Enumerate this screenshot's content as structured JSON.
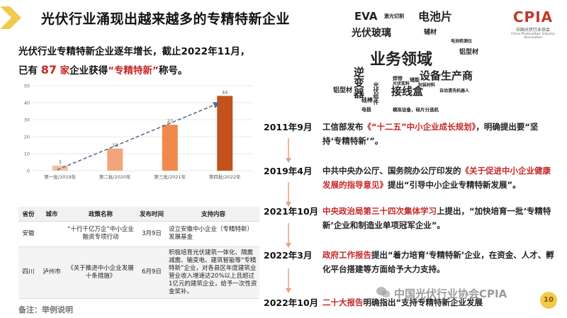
{
  "title": "光伏行业涌现出越来越多的专精特新企业",
  "intro": {
    "line1": "光伏行业专精特新企业逐年增长，截止2022年11月，",
    "line2_prefix": "已有 ",
    "count": "87",
    "line2_unit": " 家",
    "line2_mid": "企业获得",
    "highlight": "“专精特新”",
    "line2_suffix": "称号。"
  },
  "chart_data": {
    "type": "bar",
    "categories": [
      "第一批/2019年",
      "第二批/2020年",
      "第三批/2021年",
      "第四批/2022年"
    ],
    "values": [
      3,
      13,
      27,
      44
    ],
    "data_labels": [
      "3",
      "13",
      "27",
      "44"
    ],
    "bar_colors": [
      "#f2c1a2",
      "#f2a578",
      "#ef8a4a",
      "#c4521c"
    ],
    "yticks": [
      "0",
      "10",
      "20",
      "30",
      "40",
      "50"
    ],
    "ylim": [
      0,
      50
    ],
    "grid": true,
    "trendline": "dashed"
  },
  "table": {
    "headers": [
      "省份",
      "城市",
      "政策名称",
      "发布时间",
      "支持内容"
    ],
    "rows": [
      [
        "安徽",
        "",
        "“十行千亿万企”中小企业融资专项行动",
        "3月9日",
        "设立安徽中小企业（专精特新）发展基金"
      ],
      [
        "四川",
        "泸州市",
        "《关于推进中小企业发展十条措施》",
        "6月9日",
        "积极培育光伏建筑一体化、隔震减震、输变电、建筑智能等“专精特新”企业，对各县区年度建筑业营业收入增速达20%以上且超过1亿元的建筑企业，给予一次性资金奖补。"
      ]
    ]
  },
  "footnote": "备注：举例说明",
  "word_cloud": [
    {
      "text": "EVA",
      "color": "#333333"
    },
    {
      "text": "激光切割",
      "color": "#c62828"
    },
    {
      "text": "电池片",
      "color": "#333333"
    },
    {
      "text": "光伏玻璃",
      "color": "#333333"
    },
    {
      "text": "辅材",
      "color": "#2e7d32"
    },
    {
      "text": "电池检测仪",
      "color": "#c62828"
    },
    {
      "text": "铝型材",
      "color": "#2e7d32"
    },
    {
      "text": "业务领域",
      "color": "#c62828"
    },
    {
      "text": "逆变器",
      "color": "#333333"
    },
    {
      "text": "设备生产商",
      "color": "#333333"
    },
    {
      "text": "接线盒",
      "color": "#333333"
    },
    {
      "text": "自动清洗机器人",
      "color": "#c62828"
    },
    {
      "text": "光伏组件",
      "color": "#2e7d32"
    },
    {
      "text": "硅棒",
      "color": "#333333"
    },
    {
      "text": "封装材料",
      "color": "#c62828"
    },
    {
      "text": "模拟设备，硅片分选机",
      "color": "#333333"
    },
    {
      "text": "焊带",
      "color": "#c62828"
    },
    {
      "text": "电极",
      "color": "#2e7d32"
    },
    {
      "text": "铝型材",
      "color": "#2e7d32"
    },
    {
      "text": "储能",
      "color": "#c62828"
    },
    {
      "text": "光伏浆料",
      "color": "#c62828"
    }
  ],
  "logo": {
    "mark": "CPIA",
    "cn": "中国光伏行业协会",
    "en": "China Photovoltaic Industry Association"
  },
  "timeline": [
    {
      "date": "2011年9月",
      "prefix": "工信部发布",
      "red": "《“十二五”中小企业成长规划》",
      "suffix": "，明确提出要“坚持‘专精特新’”。"
    },
    {
      "date": "2019年4月",
      "prefix": "中共中央办公厅、国务院办公厅印发的",
      "red": "《关于促进中小企业健康发展的指导意见》",
      "suffix": "提出“引导中小企业专精特新发展”。"
    },
    {
      "date": "2021年10月",
      "prefix": "",
      "red": "中央政治局第三十四次集体学习",
      "suffix": "上提出，“加快培育一批‘专精特新’企业和制造业单项冠军企业”。"
    },
    {
      "date": "2022年3月",
      "prefix": "",
      "red": "政府工作报告",
      "suffix": "提出“着力培育‘专精特新’企业，在资金、人才、孵化平台搭建等方面给予大力支持。"
    },
    {
      "date": "2022年10月",
      "prefix": "",
      "red": "二十大报告",
      "suffix": "明确指出“支持专精特新企业发展"
    }
  ],
  "watermark": "中国光伏行业协会CPIA",
  "page_number": "10",
  "colors": {
    "accent_red": "#c62828",
    "chevron_yellow": "#f2c94c",
    "arrow_orange": "#e8a07a"
  }
}
